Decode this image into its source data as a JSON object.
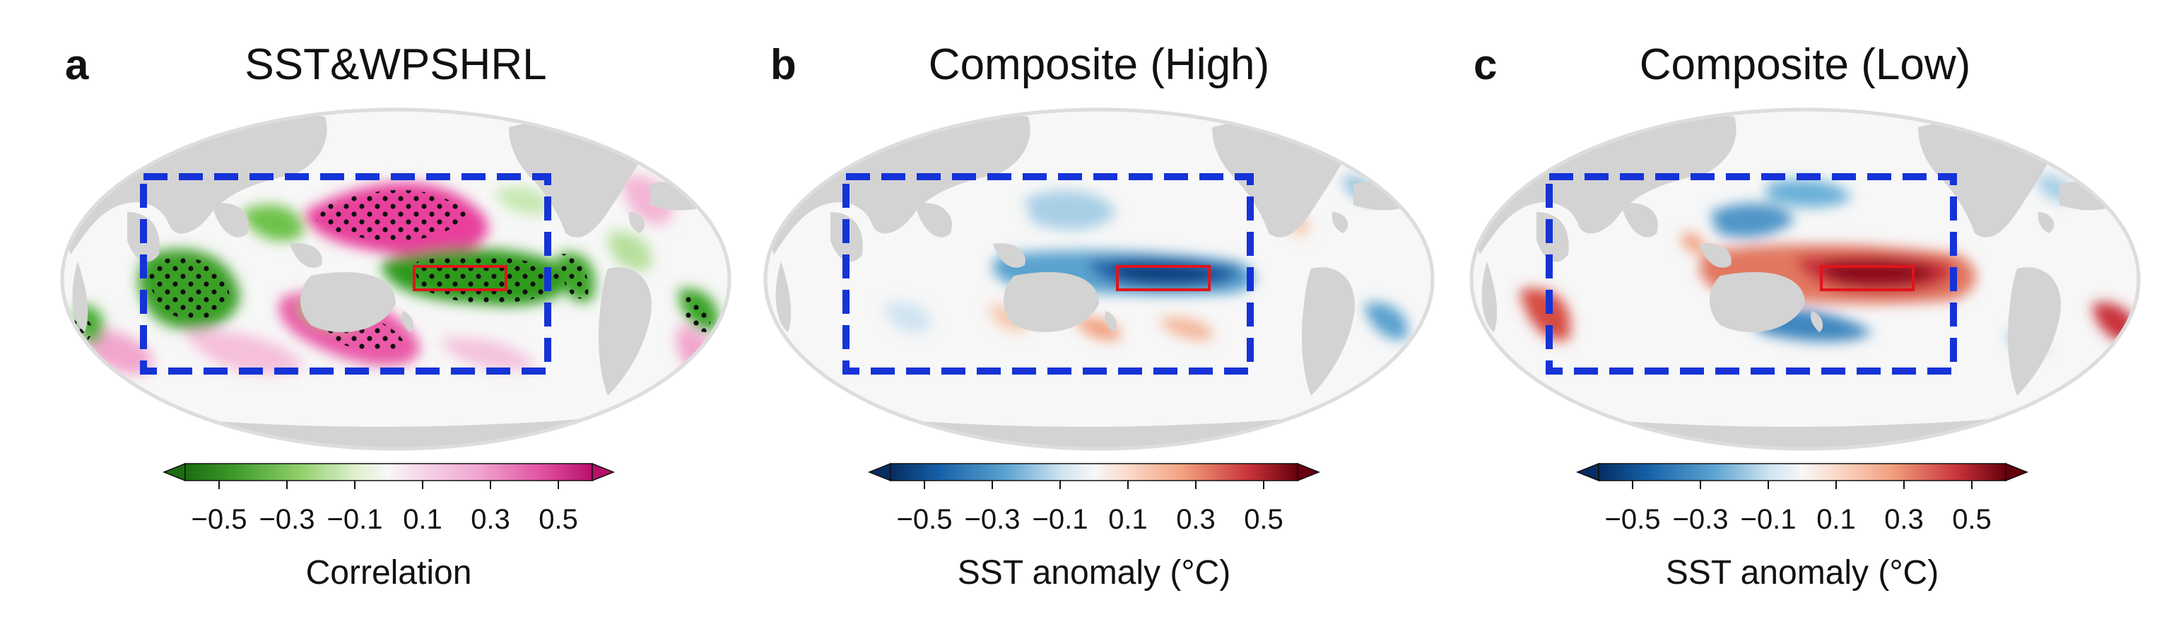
{
  "panels": [
    {
      "letter": "a",
      "title": "SST&WPSHRL",
      "colorbar_label": "Correlation",
      "tick_labels": [
        "−0.5",
        "−0.3",
        "−0.1",
        "0.1",
        "0.3",
        "0.5"
      ],
      "colormap": "PiYG_r",
      "colors": {
        "negative": "#2a8f1a",
        "positive": "#d6288a",
        "neutral": "#f7f7f7"
      },
      "hatching": "stippled where correlation is significant"
    },
    {
      "letter": "b",
      "title": "Composite (High)",
      "colorbar_label": "SST anomaly (°C)",
      "tick_labels": [
        "−0.5",
        "−0.3",
        "−0.1",
        "0.1",
        "0.3",
        "0.5"
      ],
      "colormap": "RdBu_r",
      "colors": {
        "negative": "#08306b",
        "positive": "#67000d",
        "neutral": "#f7f7f7"
      }
    },
    {
      "letter": "c",
      "title": "Composite (Low)",
      "colorbar_label": "SST anomaly (°C)",
      "tick_labels": [
        "−0.5",
        "−0.3",
        "−0.1",
        "0.1",
        "0.3",
        "0.5"
      ],
      "colormap": "RdBu_r",
      "colors": {
        "negative": "#08306b",
        "positive": "#67000d",
        "neutral": "#f7f7f7"
      }
    }
  ],
  "chart_data": [
    {
      "type": "heatmap",
      "title": "SST&WPSHRL",
      "variable": "Correlation",
      "colorbar_range": [
        -0.6,
        0.6
      ],
      "colorbar_ticks": [
        -0.5,
        -0.3,
        -0.1,
        0.1,
        0.3,
        0.5
      ],
      "extend": "both",
      "projection": "Robinson, Pacific-centred",
      "highlights": [
        "tropical central-eastern Pacific negative (green, stippled)",
        "subtropical western Pacific / western North Pacific positive (pink, stippled)",
        "tropical Indian Ocean negative (green, stippled)"
      ]
    },
    {
      "type": "heatmap",
      "title": "Composite (High)",
      "variable": "SST anomaly (°C)",
      "colorbar_range": [
        -0.6,
        0.6
      ],
      "colorbar_ticks": [
        -0.5,
        -0.3,
        -0.1,
        0.1,
        0.3,
        0.5
      ],
      "extend": "both",
      "projection": "Robinson, Pacific-centred",
      "highlights": [
        "cold anomaly along equatorial central-eastern Pacific",
        "weak warm patches in western Pacific"
      ]
    },
    {
      "type": "heatmap",
      "title": "Composite (Low)",
      "variable": "SST anomaly (°C)",
      "colorbar_range": [
        -0.6,
        0.6
      ],
      "colorbar_ticks": [
        -0.5,
        -0.3,
        -0.1,
        0.1,
        0.3,
        0.5
      ],
      "extend": "both",
      "projection": "Robinson, Pacific-centred",
      "highlights": [
        "strong warm anomaly along equatorial central-eastern Pacific",
        "cool horseshoe in western / subtropical Pacific"
      ]
    }
  ],
  "box_colors": {
    "domain_box": "#1533d6",
    "index_box": "#e0141c"
  }
}
